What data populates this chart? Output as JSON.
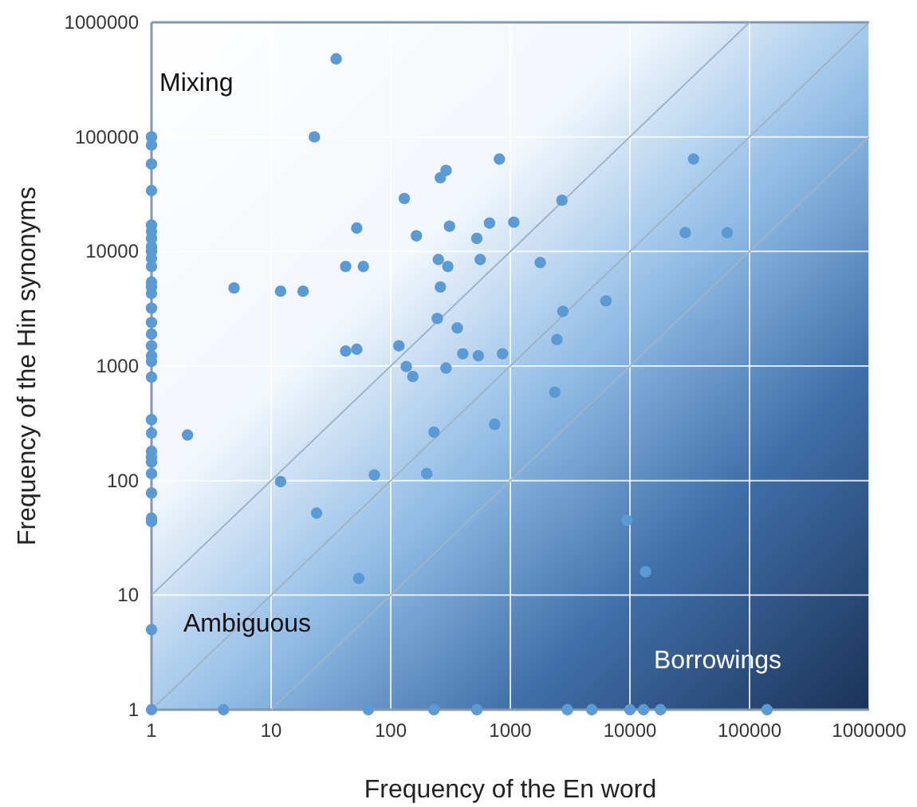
{
  "chart_data": {
    "type": "scatter",
    "xlabel": "Frequency of the En word",
    "ylabel": "Frequency of the Hin synonyms",
    "log": "xy",
    "grid": true,
    "xlim": [
      1,
      1000000
    ],
    "ylim": [
      1,
      1000000
    ],
    "xticks": [
      1,
      10,
      100,
      1000,
      10000,
      100000,
      1000000
    ],
    "yticks": [
      1,
      10,
      100,
      1000,
      10000,
      100000,
      1000000
    ],
    "annotations": [
      "Mixing",
      "Ambiguous",
      "Borrowings"
    ],
    "series": [
      {
        "type": "line",
        "color": "#9fb4c8",
        "x": [
          1,
          100000
        ],
        "values": [
          10,
          1000000
        ]
      },
      {
        "type": "line",
        "color": "#9fb4c8",
        "x": [
          1,
          1000000
        ],
        "values": [
          1,
          1000000
        ]
      },
      {
        "type": "line",
        "color": "#9fb4c8",
        "x": [
          10,
          1000000
        ],
        "values": [
          1,
          100000
        ]
      },
      {
        "color": "#5b9bd5",
        "marker": "circle",
        "x": [
          1,
          1,
          1,
          1,
          1,
          1,
          1,
          1,
          1,
          1,
          1,
          1,
          1,
          1,
          1,
          1,
          1,
          1,
          1,
          1,
          1,
          1,
          1,
          1,
          1,
          1,
          1,
          1,
          1,
          1,
          1,
          1,
          35,
          23,
          810,
          290,
          260,
          130,
          52,
          310,
          164,
          525,
          670,
          34000,
          2700,
          1070,
          560,
          1780,
          29000,
          65000,
          2750,
          6300,
          2450,
          860,
          540,
          42,
          59,
          250,
          300,
          4.9,
          12,
          18.5,
          260,
          245,
          360,
          42,
          52,
          117,
          400,
          135,
          153,
          290,
          2,
          230,
          740,
          12,
          73,
          200,
          24,
          54,
          4,
          65,
          230,
          525,
          3000,
          4800,
          10000,
          13000,
          18000,
          140000,
          2350,
          9400,
          13500
        ],
        "values": [
          100000,
          85000,
          58000,
          34000,
          17000,
          15000,
          13000,
          11000,
          10000,
          8700,
          7400,
          5400,
          4900,
          4300,
          3200,
          2400,
          1900,
          1500,
          1230,
          1100,
          800,
          340,
          260,
          180,
          160,
          145,
          115,
          78,
          47,
          44,
          5,
          1,
          480000,
          100000,
          64000,
          51000,
          44000,
          29000,
          16000,
          16600,
          13700,
          13000,
          17700,
          64000,
          28000,
          18000,
          8500,
          8000,
          14600,
          14600,
          3000,
          3700,
          1700,
          1280,
          1230,
          7400,
          7400,
          8500,
          7400,
          4800,
          4500,
          4500,
          4900,
          2600,
          2150,
          1350,
          1400,
          1500,
          1280,
          990,
          810,
          960,
          250,
          265,
          310,
          98,
          112,
          115,
          52,
          14,
          1,
          1,
          1,
          1,
          1,
          1,
          1,
          1,
          1,
          1,
          590,
          45,
          16
        ]
      }
    ]
  }
}
